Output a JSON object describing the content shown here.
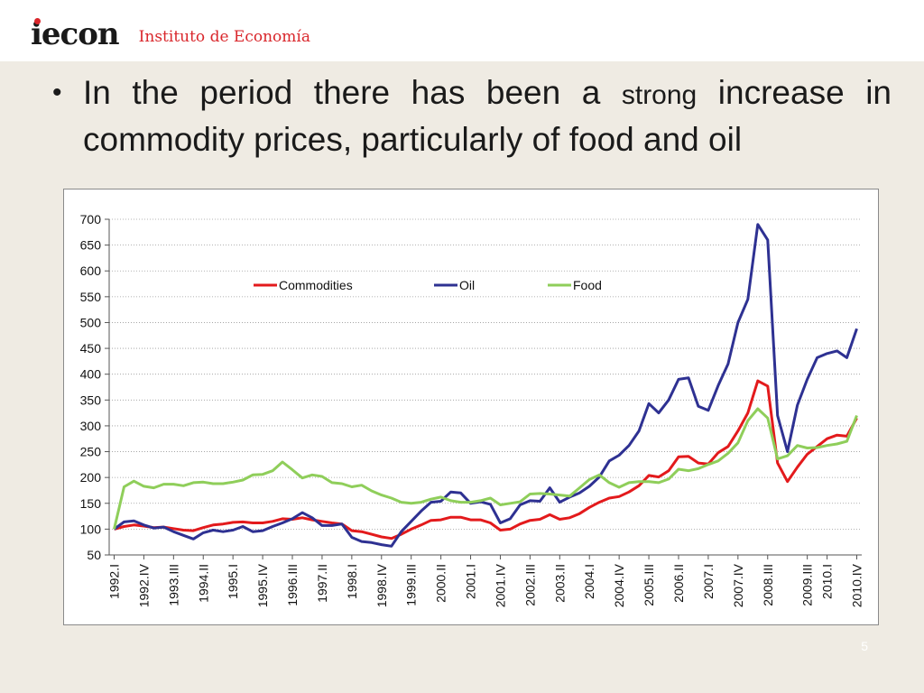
{
  "header": {
    "logo_text": "iecon",
    "org_name": "Instituto de Economía"
  },
  "bullet": {
    "text_before": "In the period there has been a ",
    "text_strong": "strong",
    "text_after": " increase in commodity prices, particularly of food and oil"
  },
  "page_number": "5",
  "colors": {
    "commodities": "#e31a1c",
    "oil": "#2e3192",
    "food": "#8fce5a",
    "accent": "#d9262b"
  },
  "chart_data": {
    "type": "line",
    "title": "",
    "xlabel": "",
    "ylabel": "",
    "ylim": [
      50,
      700
    ],
    "yticks": [
      50,
      100,
      150,
      200,
      250,
      300,
      350,
      400,
      450,
      500,
      550,
      600,
      650,
      700
    ],
    "grid": "horizontal dotted",
    "legend_position": "top, inside plot",
    "x": [
      "1992.I",
      "1992.II",
      "1992.III",
      "1992.IV",
      "1993.I",
      "1993.II",
      "1993.III",
      "1993.IV",
      "1994.I",
      "1994.II",
      "1994.III",
      "1994.IV",
      "1995.I",
      "1995.II",
      "1995.III",
      "1995.IV",
      "1996.I",
      "1996.II",
      "1996.III",
      "1996.IV",
      "1997.I",
      "1997.II",
      "1997.III",
      "1997.IV",
      "1998.I",
      "1998.II",
      "1998.III",
      "1998.IV",
      "1999.I",
      "1999.II",
      "1999.III",
      "1999.IV",
      "2000.I",
      "2000.II",
      "2000.III",
      "2000.IV",
      "2001.I",
      "2001.II",
      "2001.III",
      "2001.IV",
      "2002.I",
      "2002.II",
      "2002.III",
      "2002.IV",
      "2003.I",
      "2003.II",
      "2003.III",
      "2003.IV",
      "2004.I",
      "2004.II",
      "2004.III",
      "2004.IV",
      "2005.I",
      "2005.II",
      "2005.III",
      "2005.IV",
      "2006.I",
      "2006.II",
      "2006.III",
      "2006.IV",
      "2007.I",
      "2007.II",
      "2007.III",
      "2007.IV",
      "2008.I",
      "2008.II",
      "2008.III",
      "2008.IV",
      "2009.I",
      "2009.II",
      "2009.III",
      "2009.IV",
      "2010.I",
      "2010.II",
      "2010.III",
      "2010.IV"
    ],
    "xticks": [
      "1992.I",
      "1992.IV",
      "1993.III",
      "1994.II",
      "1995.I",
      "1995.IV",
      "1996.III",
      "1997.II",
      "1998.I",
      "1998.IV",
      "1999.III",
      "2000.II",
      "2001.I",
      "2001.IV",
      "2002.III",
      "2003.II",
      "2004.I",
      "2004.IV",
      "2005.III",
      "2006.II",
      "2007.I",
      "2007.IV",
      "2008.III",
      "2009.III",
      "2010.I",
      "2010.IV"
    ],
    "series": [
      {
        "name": "Commodities",
        "color": "#e31a1c",
        "values": [
          100,
          105,
          108,
          106,
          103,
          104,
          101,
          98,
          97,
          103,
          108,
          110,
          113,
          114,
          112,
          112,
          115,
          120,
          119,
          122,
          118,
          115,
          112,
          110,
          97,
          95,
          90,
          85,
          82,
          90,
          100,
          108,
          117,
          118,
          123,
          123,
          118,
          118,
          112,
          98,
          100,
          110,
          117,
          119,
          128,
          119,
          122,
          130,
          142,
          152,
          160,
          163,
          172,
          184,
          204,
          201,
          213,
          240,
          241,
          228,
          226,
          248,
          260,
          290,
          325,
          387,
          377,
          228,
          192,
          220,
          245,
          260,
          275,
          282,
          280,
          315
        ]
      },
      {
        "name": "Oil",
        "color": "#2e3192",
        "values": [
          100,
          114,
          116,
          108,
          102,
          104,
          95,
          88,
          81,
          93,
          98,
          95,
          98,
          105,
          95,
          97,
          105,
          112,
          120,
          132,
          122,
          107,
          107,
          110,
          84,
          76,
          74,
          70,
          67,
          95,
          115,
          135,
          152,
          154,
          172,
          170,
          150,
          153,
          148,
          112,
          120,
          147,
          155,
          154,
          180,
          152,
          162,
          170,
          183,
          201,
          232,
          243,
          262,
          290,
          343,
          325,
          350,
          390,
          393,
          338,
          330,
          378,
          420,
          500,
          545,
          690,
          660,
          320,
          250,
          340,
          390,
          432,
          440,
          445,
          432,
          488
        ]
      },
      {
        "name": "Food",
        "color": "#8fce5a",
        "values": [
          100,
          182,
          193,
          183,
          180,
          187,
          187,
          184,
          190,
          191,
          188,
          188,
          191,
          195,
          205,
          206,
          213,
          230,
          215,
          199,
          205,
          202,
          190,
          188,
          182,
          185,
          174,
          166,
          160,
          152,
          150,
          152,
          158,
          162,
          155,
          152,
          152,
          155,
          160,
          147,
          150,
          153,
          168,
          169,
          168,
          166,
          164,
          180,
          196,
          205,
          190,
          181,
          190,
          192,
          192,
          190,
          197,
          216,
          213,
          217,
          225,
          232,
          247,
          267,
          310,
          333,
          315,
          236,
          242,
          262,
          257,
          258,
          262,
          265,
          270,
          320
        ]
      }
    ]
  }
}
